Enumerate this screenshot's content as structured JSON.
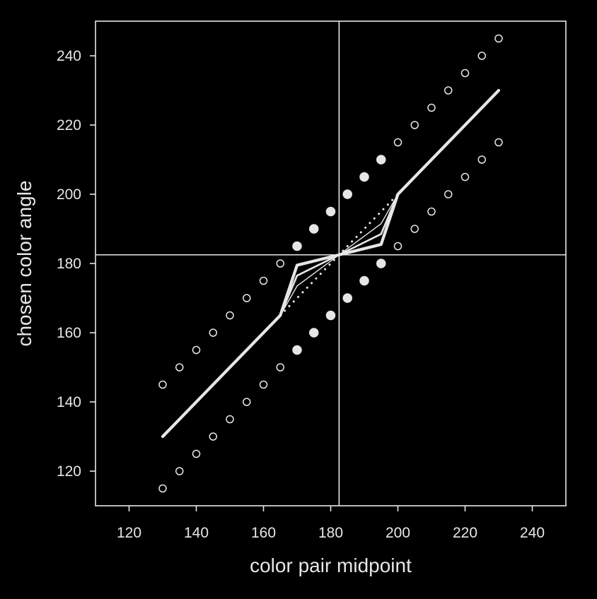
{
  "chart_data": {
    "type": "scatter",
    "title": "",
    "xlabel": "color pair midpoint",
    "ylabel": "chosen color angle",
    "xlim": [
      110,
      250
    ],
    "ylim": [
      110,
      250
    ],
    "xticks": [
      120,
      140,
      160,
      180,
      200,
      220,
      240
    ],
    "yticks": [
      120,
      140,
      160,
      180,
      200,
      220,
      240
    ],
    "reference_lines": {
      "x": 182.5,
      "y": 182.5
    },
    "colors": {
      "background": "#000000",
      "foreground": "#e6e6e6"
    },
    "series": [
      {
        "marker": "open-circle",
        "points": [
          [
            130,
            145
          ],
          [
            135,
            150
          ],
          [
            140,
            155
          ],
          [
            145,
            160
          ],
          [
            150,
            165
          ],
          [
            155,
            170
          ],
          [
            160,
            175
          ],
          [
            165,
            180
          ],
          [
            200,
            215
          ],
          [
            205,
            220
          ],
          [
            210,
            225
          ],
          [
            215,
            230
          ],
          [
            220,
            235
          ],
          [
            225,
            240
          ],
          [
            230,
            245
          ],
          [
            130,
            115
          ],
          [
            135,
            120
          ],
          [
            140,
            125
          ],
          [
            145,
            130
          ],
          [
            150,
            135
          ],
          [
            155,
            140
          ],
          [
            160,
            145
          ],
          [
            165,
            150
          ],
          [
            200,
            185
          ],
          [
            205,
            190
          ],
          [
            210,
            195
          ],
          [
            215,
            200
          ],
          [
            220,
            205
          ],
          [
            225,
            210
          ],
          [
            230,
            215
          ]
        ]
      },
      {
        "marker": "filled-circle",
        "points": [
          [
            170,
            185
          ],
          [
            175,
            190
          ],
          [
            180,
            195
          ],
          [
            185,
            200
          ],
          [
            190,
            205
          ],
          [
            195,
            210
          ],
          [
            170,
            155
          ],
          [
            175,
            160
          ],
          [
            180,
            165
          ],
          [
            185,
            170
          ],
          [
            190,
            175
          ],
          [
            195,
            180
          ]
        ]
      },
      {
        "marker": "thick-line",
        "points": [
          [
            130,
            130
          ],
          [
            165,
            165
          ],
          [
            170,
            179.5
          ],
          [
            182.5,
            182.5
          ],
          [
            195,
            185.5
          ],
          [
            200,
            200
          ],
          [
            230,
            230
          ]
        ]
      },
      {
        "marker": "medium-line",
        "points": [
          [
            165,
            165
          ],
          [
            170,
            176.5
          ],
          [
            182.5,
            182.5
          ],
          [
            195,
            188.5
          ],
          [
            200,
            200
          ]
        ]
      },
      {
        "marker": "thin-line",
        "points": [
          [
            165,
            165
          ],
          [
            170,
            173.5
          ],
          [
            182.5,
            182.5
          ],
          [
            195,
            191.5
          ],
          [
            200,
            200
          ]
        ]
      },
      {
        "marker": "dotted-line",
        "points": [
          [
            165,
            165
          ],
          [
            200,
            200
          ]
        ]
      }
    ]
  }
}
